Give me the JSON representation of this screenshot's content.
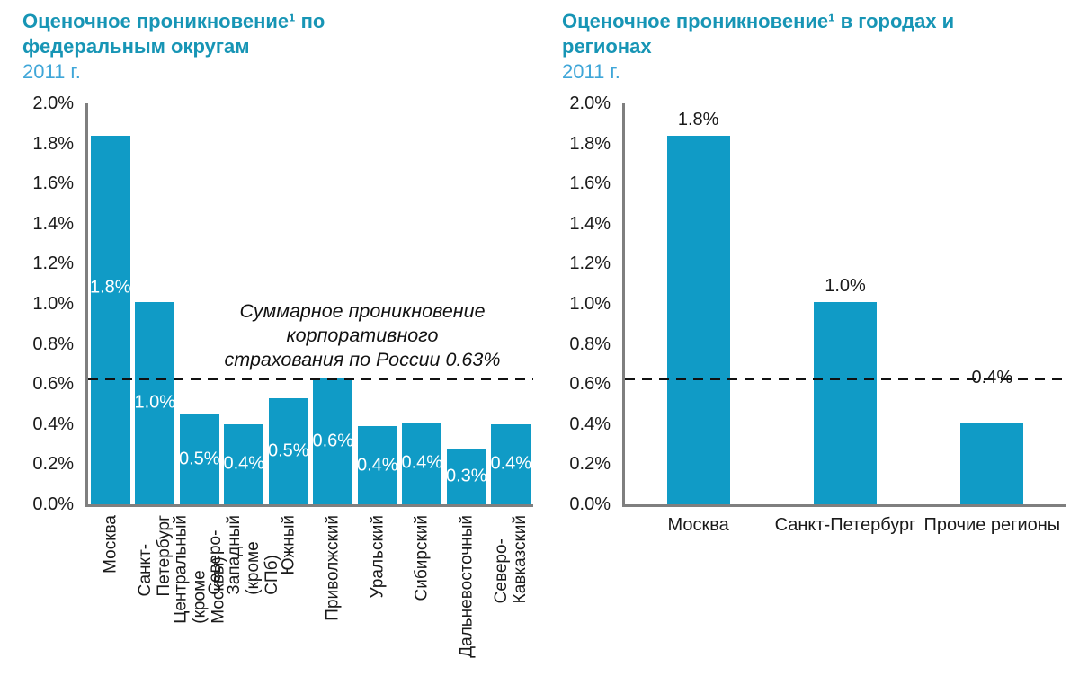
{
  "colors": {
    "bar": "#109BC6",
    "title": "#1795B5",
    "subtitle": "#3FA6D8",
    "axis": "#7f7f7f",
    "reference_line": "#111111",
    "bar_label_inside": "#ffffff",
    "bar_label_above": "#1a1a1a"
  },
  "chart_data": [
    {
      "type": "bar",
      "title": "Оценочное проникновение¹ по федеральным округам",
      "subtitle": "2011 г.",
      "categories": [
        "Москва",
        "Санкт-Петербург",
        "Центральный (кроме Москвы)",
        "Северо-Западный (кроме СПб)",
        "Южный",
        "Приволжский",
        "Уральский",
        "Сибирский",
        "Дальневосточный",
        "Северо-Кавказский"
      ],
      "values": [
        1.84,
        1.01,
        0.45,
        0.4,
        0.53,
        0.63,
        0.39,
        0.41,
        0.28,
        0.4
      ],
      "bar_labels": [
        "1.8%",
        "1.0%",
        "0.5%",
        "0.4%",
        "0.5%",
        "0.6%",
        "0.4%",
        "0.4%",
        "0.3%",
        "0.4%"
      ],
      "bar_label_position": "inside",
      "xlabel": "",
      "ylabel": "",
      "ylim": [
        0,
        2.0
      ],
      "yticks": [
        "0.0%",
        "0.2%",
        "0.4%",
        "0.6%",
        "0.8%",
        "1.0%",
        "1.2%",
        "1.4%",
        "1.6%",
        "1.8%",
        "2.0%"
      ],
      "grid": false,
      "legend": false,
      "x_tick_rotation": 90,
      "reference_line": {
        "value": 0.63,
        "style": "dashed",
        "color": "#111111"
      },
      "annotation_lines": [
        "Суммарное проникновение",
        "корпоративного",
        "страхования по России 0.63%"
      ]
    },
    {
      "type": "bar",
      "title": "Оценочное проникновение¹ в городах и регионах",
      "subtitle": "2011 г.",
      "categories": [
        "Москва",
        "Санкт-Петербург",
        "Прочие регионы"
      ],
      "values": [
        1.84,
        1.01,
        0.41
      ],
      "bar_labels": [
        "1.8%",
        "1.0%",
        "0.4%"
      ],
      "bar_label_position": "above",
      "xlabel": "",
      "ylabel": "",
      "ylim": [
        0,
        2.0
      ],
      "yticks": [
        "0.0%",
        "0.2%",
        "0.4%",
        "0.6%",
        "0.8%",
        "1.0%",
        "1.2%",
        "1.4%",
        "1.6%",
        "1.8%",
        "2.0%"
      ],
      "grid": false,
      "legend": false,
      "x_tick_rotation": 0,
      "reference_line": {
        "value": 0.63,
        "style": "dashed",
        "color": "#111111"
      }
    }
  ]
}
